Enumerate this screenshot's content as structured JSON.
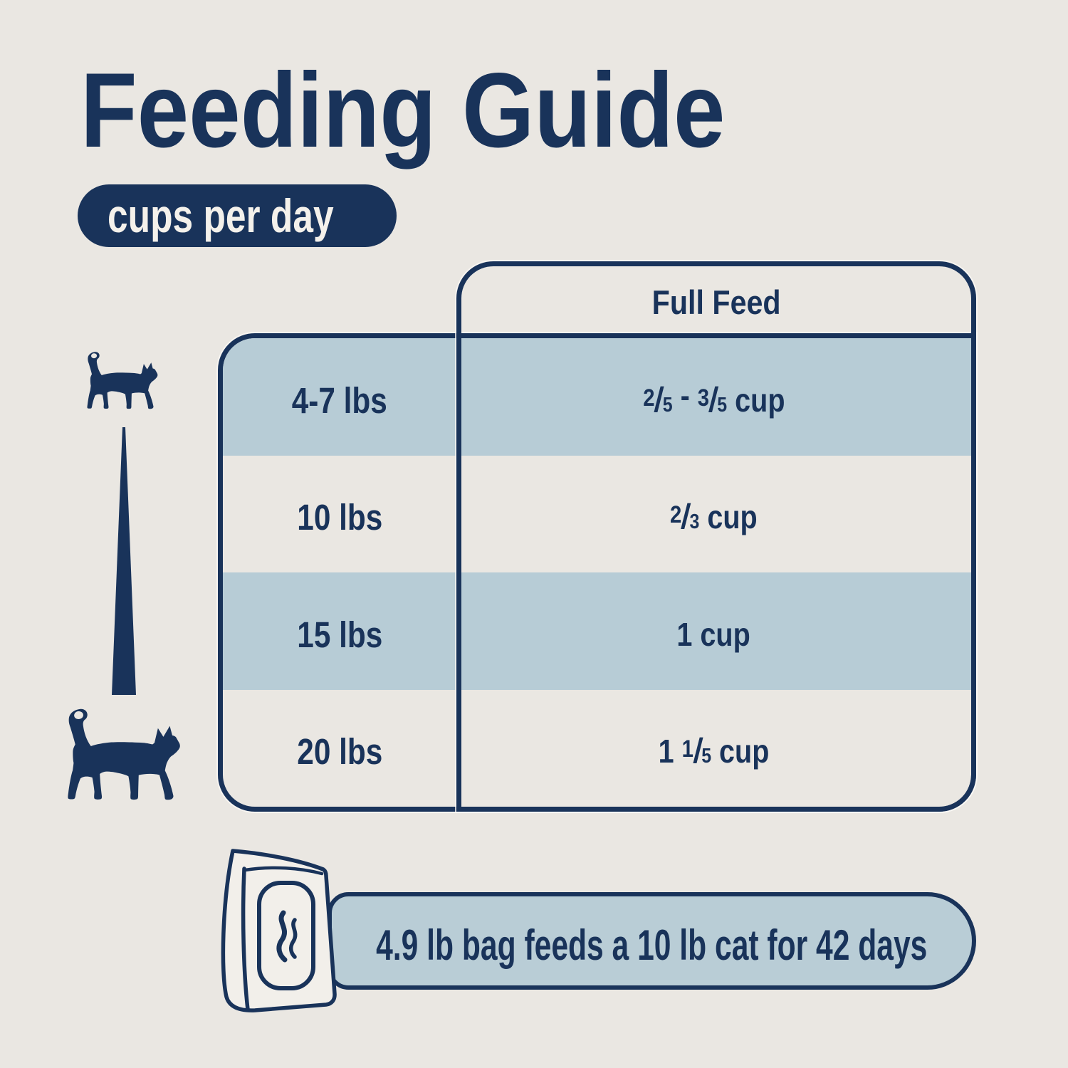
{
  "palette": {
    "background": "#EAE7E2",
    "navy": "#19335A",
    "band_blue": "#B7CCD6",
    "banner_blue": "#B9CDD6",
    "text_light": "#F4F1EB",
    "bag_fill": "#F2EFEA"
  },
  "header": {
    "title": "Feeding Guide",
    "badge": "cups per day"
  },
  "table": {
    "column_header": "Full Feed",
    "rows": [
      {
        "weight": "4-7 lbs",
        "amount": [
          {
            "frac": [
              "2",
              "5"
            ]
          },
          {
            "text": " - "
          },
          {
            "frac": [
              "3",
              "5"
            ]
          },
          {
            "text": " cup"
          }
        ],
        "amount_text": "2/5 - 3/5 cup",
        "highlight": true
      },
      {
        "weight": "10 lbs",
        "amount": [
          {
            "frac": [
              "2",
              "3"
            ]
          },
          {
            "text": " cup"
          }
        ],
        "amount_text": "2/3 cup",
        "highlight": false
      },
      {
        "weight": "15 lbs",
        "amount": [
          {
            "text": "1 cup"
          }
        ],
        "amount_text": "1 cup",
        "highlight": true
      },
      {
        "weight": "20 lbs",
        "amount": [
          {
            "text": "1 "
          },
          {
            "frac": [
              "1",
              "5"
            ]
          },
          {
            "text": " cup"
          }
        ],
        "amount_text": "1 1/5 cup",
        "highlight": false
      }
    ]
  },
  "size_legend": {
    "small_icon": "small-cat-icon",
    "large_icon": "large-cat-icon",
    "scale_icon": "size-scale-needle"
  },
  "banner": {
    "icon": "food-bag-icon",
    "text": "4.9 lb bag feeds a 10 lb cat for 42 days"
  }
}
